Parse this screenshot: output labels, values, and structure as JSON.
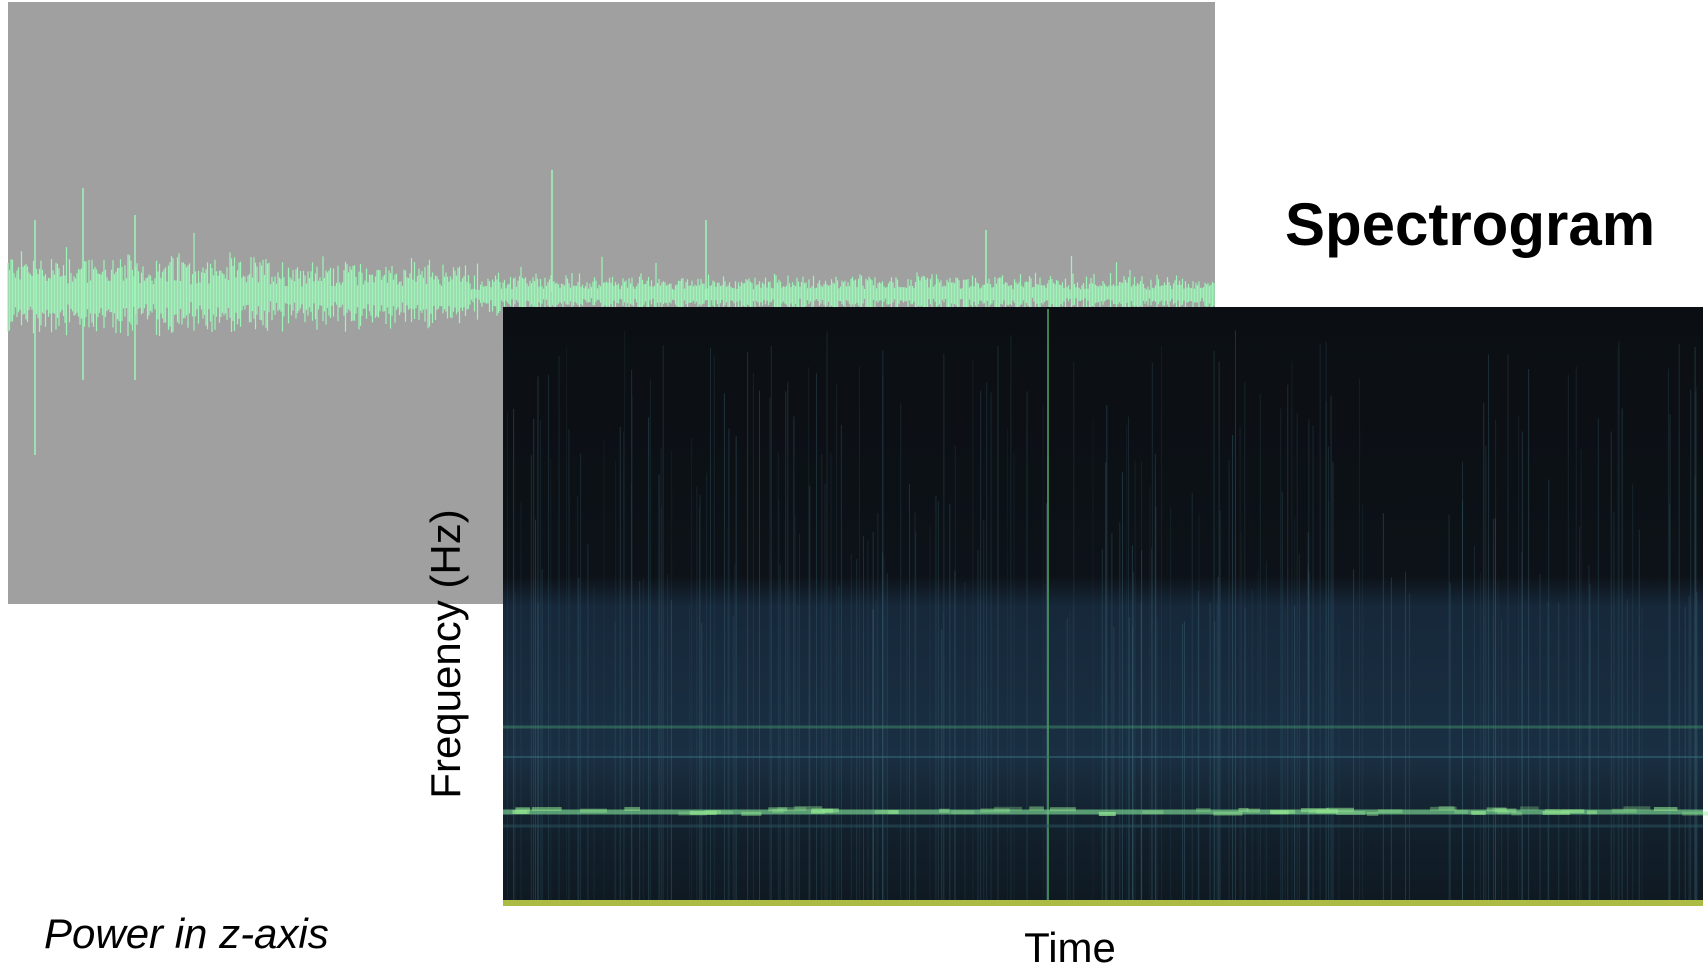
{
  "title": "Spectrogram",
  "waveform": {
    "caption": "Power in z-axis"
  },
  "spectrogram": {
    "y_label": "Frequency (Hz)",
    "x_label": "Time"
  }
}
